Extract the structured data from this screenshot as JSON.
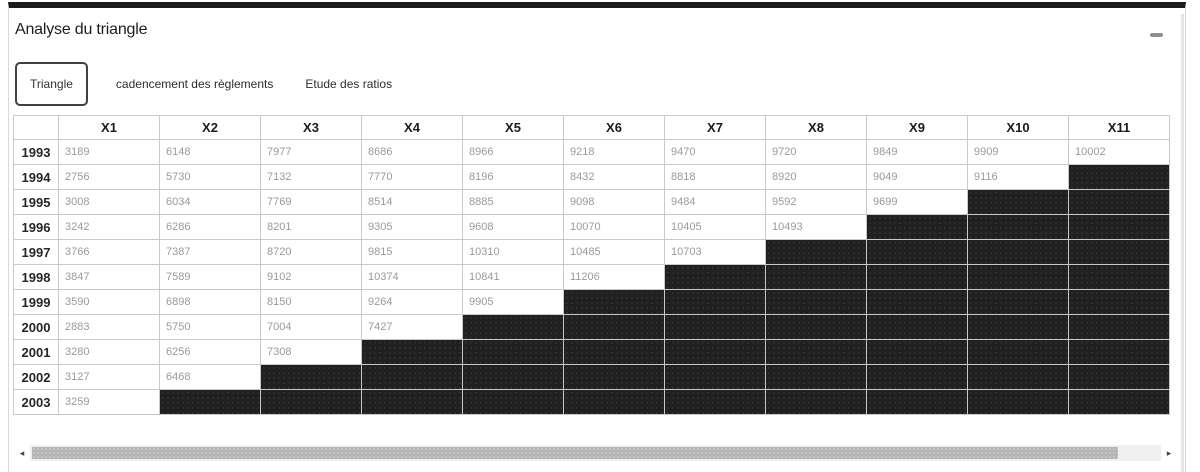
{
  "panel": {
    "title": "Analyse du triangle"
  },
  "tabs": [
    {
      "label": "Triangle",
      "active": true
    },
    {
      "label": "cadencement des règlements",
      "active": false
    },
    {
      "label": "Etude des ratios",
      "active": false
    }
  ],
  "table": {
    "corner_label": "",
    "columns": [
      "X1",
      "X2",
      "X3",
      "X4",
      "X5",
      "X6",
      "X7",
      "X8",
      "X9",
      "X10",
      "X11"
    ],
    "rows": [
      {
        "year": "1993",
        "values": [
          3189,
          6148,
          7977,
          8686,
          8966,
          9218,
          9470,
          9720,
          9849,
          9909,
          10002
        ]
      },
      {
        "year": "1994",
        "values": [
          2756,
          5730,
          7132,
          7770,
          8196,
          8432,
          8818,
          8920,
          9049,
          9116
        ]
      },
      {
        "year": "1995",
        "values": [
          3008,
          6034,
          7769,
          8514,
          8885,
          9098,
          9484,
          9592,
          9699
        ]
      },
      {
        "year": "1996",
        "values": [
          3242,
          6286,
          8201,
          9305,
          9608,
          10070,
          10405,
          10493
        ]
      },
      {
        "year": "1997",
        "values": [
          3766,
          7387,
          8720,
          9815,
          10310,
          10485,
          10703
        ]
      },
      {
        "year": "1998",
        "values": [
          3847,
          7589,
          9102,
          10374,
          10841,
          11206
        ]
      },
      {
        "year": "1999",
        "values": [
          3590,
          6898,
          8150,
          9264,
          9905
        ]
      },
      {
        "year": "2000",
        "values": [
          2883,
          5750,
          7004,
          7427
        ]
      },
      {
        "year": "2001",
        "values": [
          3280,
          6256,
          7308
        ]
      },
      {
        "year": "2002",
        "values": [
          3127,
          6468
        ]
      },
      {
        "year": "2003",
        "values": [
          3259
        ]
      }
    ]
  },
  "scrollbar": {
    "left_arrow": "◂",
    "right_arrow": "▸"
  },
  "colors": {
    "top_bar": "#1c1c1c",
    "filled_cell": "#202020",
    "grid_border": "#c9c9c9",
    "value_text": "#9a9a9a",
    "active_tab_border": "#414141",
    "scroll_thumb": "#b5b5b5"
  }
}
